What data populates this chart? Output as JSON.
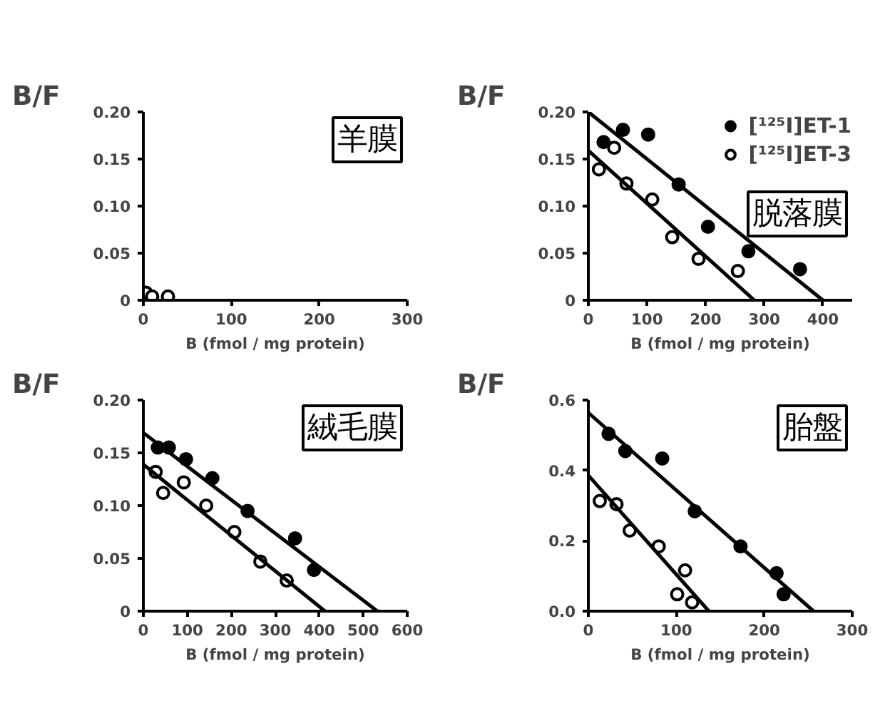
{
  "chart_data": [
    {
      "type": "scatter",
      "xlabel": "B (fmol / mg protein)",
      "ylabel": "B/F",
      "annotations": [
        "羊膜"
      ],
      "xlim": [
        0,
        300
      ],
      "ylim": [
        0,
        0.2
      ],
      "xticks": [
        0,
        100,
        200,
        300
      ],
      "yticks": [
        0,
        0.05,
        {
          "value": 0.1,
          "label": "0.10"
        },
        0.15,
        {
          "value": 0.2,
          "label": "0.20"
        }
      ],
      "legend": false,
      "marker": "circle",
      "series": [
        {
          "color": "#ffffff",
          "x": [
            3,
            10,
            28
          ],
          "values": [
            0.008,
            0.004,
            0.004
          ]
        }
      ]
    },
    {
      "type": "scatter",
      "xlabel": "B (fmol / mg protein)",
      "ylabel": "B/F",
      "annotations": [
        "脱落膜"
      ],
      "xlim": [
        0,
        450
      ],
      "ylim": [
        0,
        0.2
      ],
      "xticks": [
        0,
        100,
        200,
        300,
        400
      ],
      "yticks": [
        0,
        0.05,
        {
          "value": 0.1,
          "label": "0.10"
        },
        0.15,
        {
          "value": 0.2,
          "label": "0.20"
        }
      ],
      "legend": "top right",
      "marker": "circle",
      "series": [
        {
          "name": "[¹²⁵I]ET-1",
          "color": "#000000",
          "x": [
            26,
            59,
            102,
            154,
            204,
            273,
            361
          ],
          "values": [
            0.168,
            0.181,
            0.176,
            0.123,
            0.078,
            0.052,
            0.033
          ]
        },
        {
          "name": "[¹²⁵I]ET-3",
          "color": "#ffffff",
          "x": [
            18,
            44,
            65,
            109,
            143,
            188,
            255
          ],
          "values": [
            0.139,
            0.162,
            0.124,
            0.107,
            0.067,
            0.044,
            0.031
          ]
        },
        {
          "type": "line",
          "marker": "none",
          "color": "#000000",
          "x": [
            0,
            400
          ],
          "values": [
            0.2,
            0
          ]
        },
        {
          "type": "line",
          "marker": "none",
          "color": "#000000",
          "x": [
            0,
            283
          ],
          "values": [
            0.159,
            0
          ]
        }
      ]
    },
    {
      "type": "scatter",
      "xlabel": "B (fmol / mg protein)",
      "ylabel": "B/F",
      "annotations": [
        "絨毛膜"
      ],
      "xlim": [
        0,
        600
      ],
      "ylim": [
        0,
        0.2
      ],
      "xticks": [
        0,
        100,
        200,
        300,
        400,
        500,
        600
      ],
      "yticks": [
        0,
        0.05,
        {
          "value": 0.1,
          "label": "0.10"
        },
        0.15,
        {
          "value": 0.2,
          "label": "0.20"
        }
      ],
      "legend": false,
      "marker": "circle",
      "series": [
        {
          "color": "#000000",
          "x": [
            33,
            58,
            97,
            157,
            237,
            345,
            388
          ],
          "values": [
            0.155,
            0.155,
            0.144,
            0.126,
            0.095,
            0.069,
            0.039
          ]
        },
        {
          "color": "#ffffff",
          "x": [
            28,
            45,
            92,
            143,
            207,
            266,
            326
          ],
          "values": [
            0.132,
            0.112,
            0.122,
            0.1,
            0.075,
            0.047,
            0.029
          ]
        },
        {
          "type": "line",
          "marker": "none",
          "color": "#000000",
          "x": [
            0,
            532
          ],
          "values": [
            0.169,
            0
          ]
        },
        {
          "type": "line",
          "marker": "none",
          "color": "#000000",
          "x": [
            0,
            413
          ],
          "values": [
            0.139,
            0
          ]
        }
      ]
    },
    {
      "type": "scatter",
      "xlabel": "B (fmol / mg protein)",
      "ylabel": "B/F",
      "annotations": [
        "胎盤"
      ],
      "xlim": [
        0,
        300
      ],
      "ylim": [
        0,
        0.6
      ],
      "xticks": [
        0,
        100,
        200,
        300
      ],
      "yticks": [
        {
          "value": 0,
          "label": "0.0"
        },
        0.2,
        0.4,
        {
          "value": 0.6,
          "label": "0.6"
        }
      ],
      "legend": false,
      "marker": "circle",
      "series": [
        {
          "color": "#000000",
          "x": [
            23,
            42,
            84,
            121,
            173,
            214,
            222
          ],
          "values": [
            0.504,
            0.455,
            0.434,
            0.284,
            0.184,
            0.108,
            0.048
          ]
        },
        {
          "color": "#ffffff",
          "x": [
            13,
            32,
            47,
            80,
            110,
            101,
            118
          ],
          "values": [
            0.313,
            0.304,
            0.229,
            0.184,
            0.116,
            0.048,
            0.025
          ]
        },
        {
          "type": "line",
          "marker": "none",
          "color": "#000000",
          "x": [
            0,
            256
          ],
          "values": [
            0.564,
            0
          ]
        },
        {
          "type": "line",
          "marker": "none",
          "color": "#000000",
          "x": [
            0,
            137
          ],
          "values": [
            0.386,
            0
          ]
        }
      ]
    }
  ]
}
